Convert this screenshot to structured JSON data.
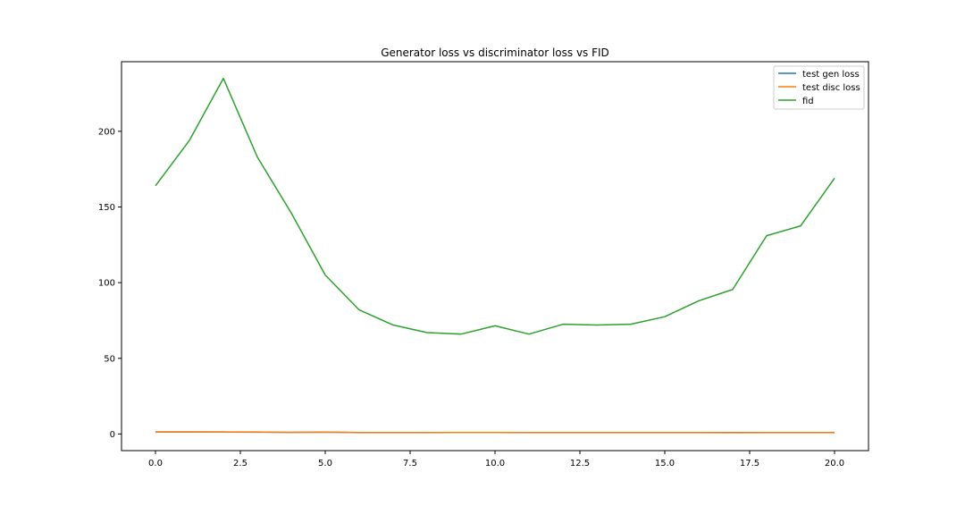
{
  "chart_data": {
    "type": "line",
    "title": "Generator loss vs discriminator loss vs FID",
    "xlabel": "",
    "ylabel": "",
    "xlim": [
      -1.0,
      21.0
    ],
    "ylim": [
      -11,
      246
    ],
    "xticks": [
      0.0,
      2.5,
      5.0,
      7.5,
      10.0,
      12.5,
      15.0,
      17.5,
      20.0
    ],
    "xtick_labels": [
      "0.0",
      "2.5",
      "5.0",
      "7.5",
      "10.0",
      "12.5",
      "15.0",
      "17.5",
      "20.0"
    ],
    "yticks": [
      0,
      50,
      100,
      150,
      200
    ],
    "ytick_labels": [
      "0",
      "50",
      "100",
      "150",
      "200"
    ],
    "grid": false,
    "legend_position": "top-right",
    "x": [
      0,
      1,
      2,
      3,
      4,
      5,
      6,
      7,
      8,
      9,
      10,
      11,
      12,
      13,
      14,
      15,
      16,
      17,
      18,
      19,
      20
    ],
    "series": [
      {
        "name": "test gen loss",
        "color": "#1f77b4",
        "values": [
          1.3,
          1.3,
          1.3,
          1.2,
          1.1,
          1.2,
          1.0,
          1.0,
          1.0,
          1.0,
          1.0,
          1.0,
          1.0,
          1.0,
          1.0,
          1.0,
          1.0,
          1.0,
          1.0,
          1.0,
          1.0
        ]
      },
      {
        "name": "test disc loss",
        "color": "#ff7f0e",
        "values": [
          1.4,
          1.4,
          1.3,
          1.3,
          1.0,
          1.2,
          0.9,
          0.9,
          0.9,
          1.0,
          1.0,
          0.9,
          0.9,
          0.9,
          0.9,
          0.9,
          0.9,
          0.8,
          0.9,
          0.9,
          0.9
        ]
      },
      {
        "name": "fid",
        "color": "#2ca02c",
        "values": [
          164,
          194,
          235,
          183,
          146,
          105,
          82,
          72,
          67,
          66,
          71.5,
          66,
          72.5,
          72,
          72.5,
          77.5,
          88,
          95.5,
          131,
          137.5,
          169
        ]
      }
    ]
  }
}
